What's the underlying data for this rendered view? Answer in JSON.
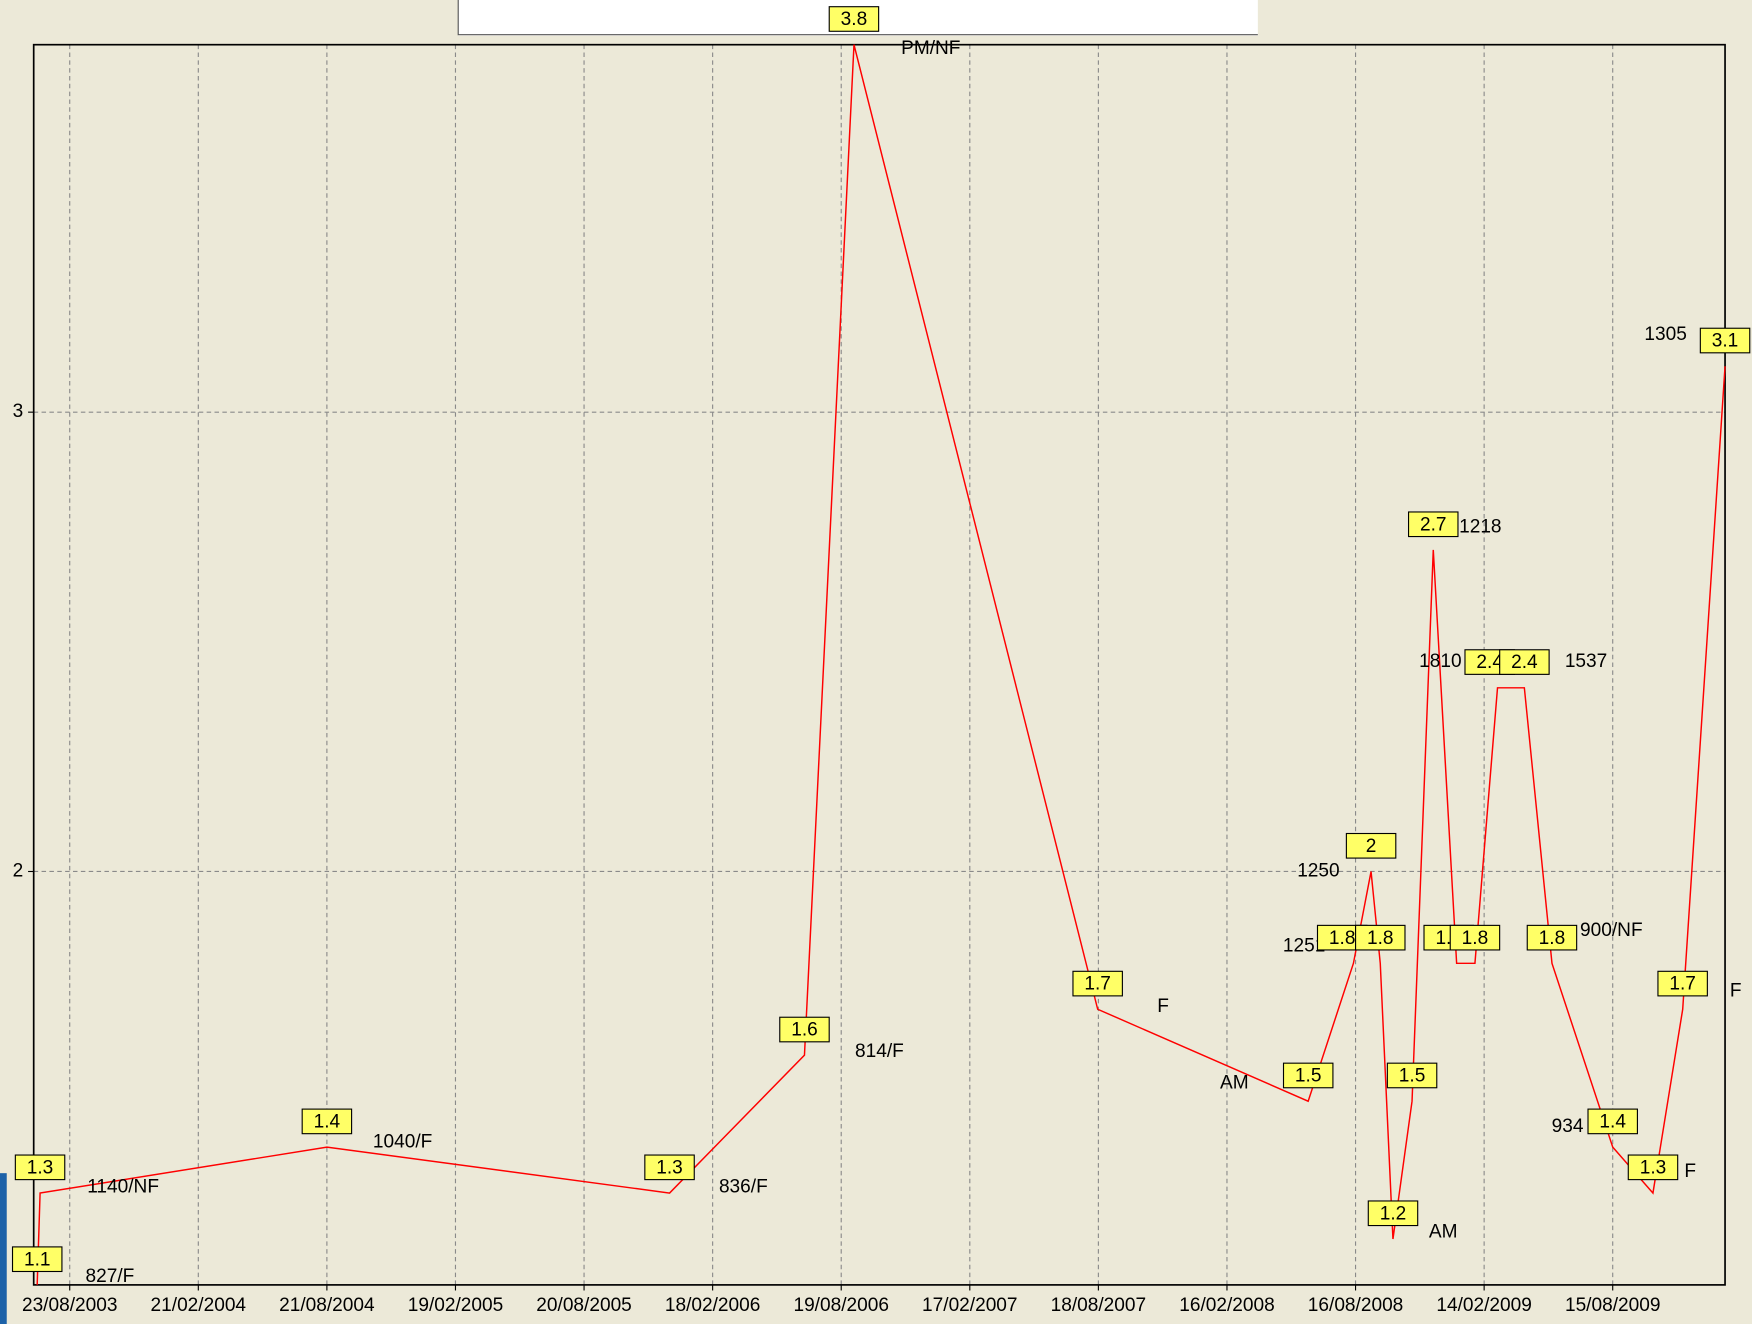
{
  "chart_data": {
    "type": "line",
    "x": [
      "08/07/2003",
      "12/07/2003",
      "21/08/2004",
      "19/12/2005",
      "28/06/2006",
      "06/09/2006",
      "17/08/2007",
      "10/06/2008",
      "13/08/2008",
      "07/09/2008",
      "20/09/2008",
      "08/10/2008",
      "04/11/2008",
      "04/12/2008",
      "06/01/2009",
      "01/02/2009",
      "05/03/2009",
      "12/04/2009",
      "21/05/2009",
      "15/08/2009",
      "11/10/2009",
      "22/11/2009",
      "21/01/2010"
    ],
    "values": [
      1.1,
      1.3,
      1.4,
      1.3,
      1.6,
      3.8,
      1.7,
      1.5,
      1.8,
      2,
      1.8,
      1.2,
      1.5,
      2.7,
      1.8,
      1.8,
      2.4,
      2.4,
      1.8,
      1.4,
      1.3,
      1.7,
      3.1
    ],
    "labels": [
      "827/F",
      "1140/NF",
      "1040/F",
      "836/F",
      "814/F",
      "PM/NF",
      "F",
      "AM",
      "1251",
      "1250",
      null,
      "AM",
      null,
      "1218",
      null,
      null,
      "1810",
      "1537",
      "900/NF",
      "934",
      "F",
      "F",
      "1305"
    ],
    "color": "#ff0000",
    "xlim": [
      "03/07/2003",
      "21/01/2010"
    ],
    "xticks": [
      "23/08/2003",
      "21/02/2004",
      "21/08/2004",
      "19/02/2005",
      "20/08/2005",
      "18/02/2006",
      "19/08/2006",
      "17/02/2007",
      "18/08/2007",
      "16/02/2008",
      "16/08/2008",
      "14/02/2009",
      "15/08/2009"
    ],
    "ylim": [
      1.1,
      3.8
    ],
    "yticks": [
      2,
      3
    ],
    "grid": true
  }
}
